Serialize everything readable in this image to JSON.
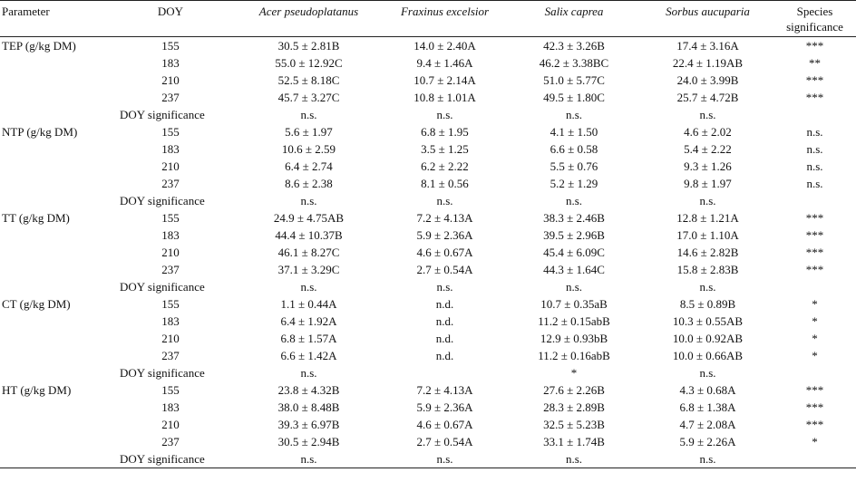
{
  "headers": {
    "parameter": "Parameter",
    "doy": "DOY",
    "species": [
      "Acer pseudoplatanus",
      "Fraxinus excelsior",
      "Salix caprea",
      "Sorbus aucuparia"
    ],
    "species_significance": "Species significance"
  },
  "doy_sig_label": "DOY significance",
  "groups": [
    {
      "parameter": "TEP (g/kg DM)",
      "rows": [
        {
          "doy": "155",
          "values": [
            "30.5 ± 2.81B",
            "14.0 ± 2.40A",
            "42.3 ± 3.26B",
            "17.4 ± 3.16A"
          ],
          "sig": "***"
        },
        {
          "doy": "183",
          "values": [
            "55.0 ± 12.92C",
            "9.4 ± 1.46A",
            "46.2 ± 3.38BC",
            "22.4 ± 1.19AB"
          ],
          "sig": "**"
        },
        {
          "doy": "210",
          "values": [
            "52.5 ± 8.18C",
            "10.7 ± 2.14A",
            "51.0 ± 5.77C",
            "24.0 ± 3.99B"
          ],
          "sig": "***"
        },
        {
          "doy": "237",
          "values": [
            "45.7 ± 3.27C",
            "10.8 ± 1.01A",
            "49.5 ± 1.80C",
            "25.7 ± 4.72B"
          ],
          "sig": "***"
        }
      ],
      "doy_sig": [
        "n.s.",
        "n.s.",
        "n.s.",
        "n.s."
      ]
    },
    {
      "parameter": "NTP (g/kg DM)",
      "rows": [
        {
          "doy": "155",
          "values": [
            "5.6 ± 1.97",
            "6.8 ± 1.95",
            "4.1 ± 1.50",
            "4.6 ± 2.02"
          ],
          "sig": "n.s."
        },
        {
          "doy": "183",
          "values": [
            "10.6 ± 2.59",
            "3.5 ± 1.25",
            "6.6 ± 0.58",
            "5.4 ± 2.22"
          ],
          "sig": "n.s."
        },
        {
          "doy": "210",
          "values": [
            "6.4 ± 2.74",
            "6.2 ± 2.22",
            "5.5 ± 0.76",
            "9.3 ± 1.26"
          ],
          "sig": "n.s."
        },
        {
          "doy": "237",
          "values": [
            "8.6 ± 2.38",
            "8.1 ± 0.56",
            "5.2 ± 1.29",
            "9.8 ± 1.97"
          ],
          "sig": "n.s."
        }
      ],
      "doy_sig": [
        "n.s.",
        "n.s.",
        "n.s.",
        "n.s."
      ]
    },
    {
      "parameter": "TT (g/kg DM)",
      "rows": [
        {
          "doy": "155",
          "values": [
            "24.9 ± 4.75AB",
            "7.2 ± 4.13A",
            "38.3 ± 2.46B",
            "12.8 ± 1.21A"
          ],
          "sig": "***"
        },
        {
          "doy": "183",
          "values": [
            "44.4 ± 10.37B",
            "5.9 ± 2.36A",
            "39.5 ± 2.96B",
            "17.0 ± 1.10A"
          ],
          "sig": "***"
        },
        {
          "doy": "210",
          "values": [
            "46.1 ± 8.27C",
            "4.6 ± 0.67A",
            "45.4 ± 6.09C",
            "14.6 ± 2.82B"
          ],
          "sig": "***"
        },
        {
          "doy": "237",
          "values": [
            "37.1 ± 3.29C",
            "2.7 ± 0.54A",
            "44.3 ± 1.64C",
            "15.8 ± 2.83B"
          ],
          "sig": "***"
        }
      ],
      "doy_sig": [
        "n.s.",
        "n.s.",
        "n.s.",
        "n.s."
      ]
    },
    {
      "parameter": "CT (g/kg DM)",
      "rows": [
        {
          "doy": "155",
          "values": [
            "1.1 ± 0.44A",
            "n.d.",
            "10.7 ± 0.35aB",
            "8.5 ± 0.89B"
          ],
          "sig": "*"
        },
        {
          "doy": "183",
          "values": [
            "6.4 ± 1.92A",
            "n.d.",
            "11.2 ± 0.15abB",
            "10.3 ± 0.55AB"
          ],
          "sig": "*"
        },
        {
          "doy": "210",
          "values": [
            "6.8 ± 1.57A",
            "n.d.",
            "12.9 ± 0.93bB",
            "10.0 ± 0.92AB"
          ],
          "sig": "*"
        },
        {
          "doy": "237",
          "values": [
            "6.6 ± 1.42A",
            "n.d.",
            "11.2 ± 0.16abB",
            "10.0 ± 0.66AB"
          ],
          "sig": "*"
        }
      ],
      "doy_sig": [
        "n.s.",
        "",
        "*",
        "n.s."
      ]
    },
    {
      "parameter": "HT (g/kg DM)",
      "rows": [
        {
          "doy": "155",
          "values": [
            "23.8 ± 4.32B",
            "7.2 ± 4.13A",
            "27.6 ± 2.26B",
            "4.3 ± 0.68A"
          ],
          "sig": "***"
        },
        {
          "doy": "183",
          "values": [
            "38.0 ± 8.48B",
            "5.9 ± 2.36A",
            "28.3 ± 2.89B",
            "6.8 ± 1.38A"
          ],
          "sig": "***"
        },
        {
          "doy": "210",
          "values": [
            "39.3 ± 6.97B",
            "4.6 ± 0.67A",
            "32.5 ± 5.23B",
            "4.7 ± 2.08A"
          ],
          "sig": "***"
        },
        {
          "doy": "237",
          "values": [
            "30.5 ± 2.94B",
            "2.7 ± 0.54A",
            "33.1 ± 1.74B",
            "5.9 ± 2.26A"
          ],
          "sig": "*"
        }
      ],
      "doy_sig": [
        "n.s.",
        "n.s.",
        "n.s.",
        "n.s."
      ]
    }
  ]
}
